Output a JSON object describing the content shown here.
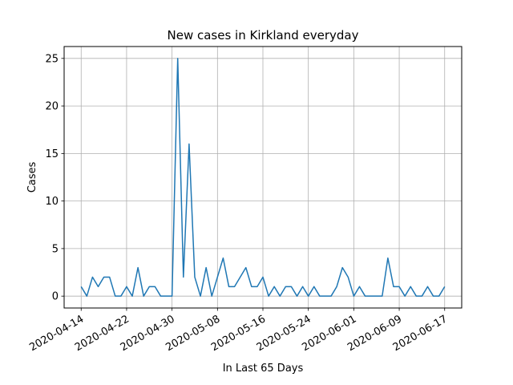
{
  "chart_data": {
    "type": "line",
    "title": "New cases in Kirkland everyday",
    "xlabel": "In Last 65 Days",
    "ylabel": "Cases",
    "x_start": "2020-04-14",
    "x_ticks": [
      "2020-04-14",
      "2020-04-22",
      "2020-04-30",
      "2020-05-08",
      "2020-05-16",
      "2020-05-24",
      "2020-06-01",
      "2020-06-09",
      "2020-06-17"
    ],
    "y_ticks": [
      0,
      5,
      10,
      15,
      20,
      25
    ],
    "xlim": [
      "2020-04-11",
      "2020-06-20"
    ],
    "ylim": [
      -1.25,
      26.25
    ],
    "grid": true,
    "series": [
      {
        "color": "#1f77b4",
        "values": [
          1,
          0,
          2,
          1,
          2,
          2,
          0,
          0,
          1,
          0,
          3,
          0,
          1,
          1,
          0,
          0,
          0,
          25,
          2,
          16,
          2,
          0,
          3,
          0,
          2,
          4,
          1,
          1,
          2,
          3,
          1,
          1,
          2,
          0,
          1,
          0,
          1,
          1,
          0,
          1,
          0,
          1,
          0,
          0,
          0,
          1,
          3,
          2,
          0,
          1,
          0,
          0,
          0,
          0,
          4,
          1,
          1,
          0,
          1,
          0,
          0,
          1,
          0,
          0,
          1
        ]
      }
    ]
  }
}
